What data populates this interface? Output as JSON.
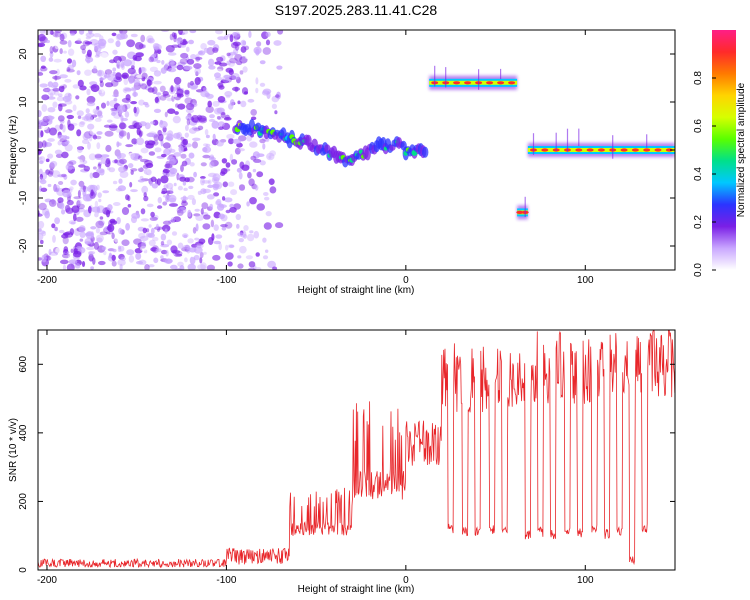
{
  "figure": {
    "title": "S197.2025.283.11.41.C28"
  },
  "colorbar": {
    "label": "Normalized spectral amplitude",
    "ticks": [
      "0.0",
      "0.2",
      "0.4",
      "0.6",
      "0.8"
    ],
    "colors": [
      "#ffffff",
      "#c9a6ff",
      "#7a1fe6",
      "#2b34ff",
      "#00c8ff",
      "#00e08a",
      "#59ff00",
      "#d6ff00",
      "#ffd400",
      "#ff7a00",
      "#ff2a2a",
      "#ff1e86"
    ]
  },
  "chart_data": [
    {
      "type": "heatmap",
      "name": "spectrogram",
      "xlabel": "Height of straight line (km)",
      "ylabel": "Frequency (Hz)",
      "xlim": [
        -205,
        150
      ],
      "ylim": [
        -25,
        25
      ],
      "xticks": [
        -200,
        -100,
        0,
        100
      ],
      "yticks": [
        -20,
        -10,
        0,
        10,
        20
      ],
      "zlim": [
        0,
        1
      ],
      "features": [
        {
          "label": "broadband noise",
          "x_range": [
            -205,
            -70
          ],
          "freq_range": [
            -25,
            25
          ],
          "amplitude": 0.1
        },
        {
          "label": "signal track",
          "points": [
            [
              -95,
              5
            ],
            [
              -80,
              4
            ],
            [
              -60,
              2
            ],
            [
              -45,
              0
            ],
            [
              -35,
              -2
            ],
            [
              -25,
              -1
            ],
            [
              -15,
              1
            ],
            [
              -5,
              1
            ],
            [
              0,
              0
            ],
            [
              12,
              0
            ]
          ],
          "amplitude": 0.4
        },
        {
          "label": "upper line",
          "x_range": [
            13,
            62
          ],
          "freq": 14,
          "amplitude": 0.95
        },
        {
          "label": "lower line",
          "x_range": [
            62,
            68
          ],
          "freq": -13,
          "amplitude": 0.95
        },
        {
          "label": "carrier line",
          "x_range": [
            68,
            150
          ],
          "freq": 0,
          "amplitude": 0.95
        }
      ]
    },
    {
      "type": "line",
      "name": "snr",
      "xlabel": "Height of straight line (km)",
      "ylabel": "SNR (10 * v/v)",
      "xlim": [
        -205,
        150
      ],
      "ylim": [
        0,
        700
      ],
      "xticks": [
        -200,
        -100,
        0,
        100
      ],
      "yticks": [
        0,
        200,
        400,
        600
      ],
      "color": "#e8262a",
      "segments": [
        {
          "x_range": [
            -205,
            -100
          ],
          "snr": 20
        },
        {
          "x_range": [
            -100,
            -65
          ],
          "snr": 40
        },
        {
          "x_range": [
            -65,
            -30
          ],
          "snr": 120
        },
        {
          "x_range": [
            -30,
            0
          ],
          "snr": 250
        },
        {
          "x_range": [
            0,
            20
          ],
          "snr": 370
        },
        {
          "x_range": [
            20,
            70
          ],
          "snr": 560
        },
        {
          "x_range": [
            70,
            125
          ],
          "snr": 590
        },
        {
          "x_range": [
            125,
            150
          ],
          "snr": 610
        }
      ],
      "dropouts": [
        {
          "x": 25,
          "snr": 120
        },
        {
          "x": 33,
          "snr": 110
        },
        {
          "x": 40,
          "snr": 115
        },
        {
          "x": 48,
          "snr": 120
        },
        {
          "x": 55,
          "snr": 110
        },
        {
          "x": 68,
          "snr": 100
        },
        {
          "x": 75,
          "snr": 110
        },
        {
          "x": 82,
          "snr": 105
        },
        {
          "x": 90,
          "snr": 115
        },
        {
          "x": 97,
          "snr": 110
        },
        {
          "x": 105,
          "snr": 120
        },
        {
          "x": 112,
          "snr": 105
        },
        {
          "x": 119,
          "snr": 110
        },
        {
          "x": 126,
          "snr": 30
        },
        {
          "x": 133,
          "snr": 120
        }
      ]
    }
  ]
}
